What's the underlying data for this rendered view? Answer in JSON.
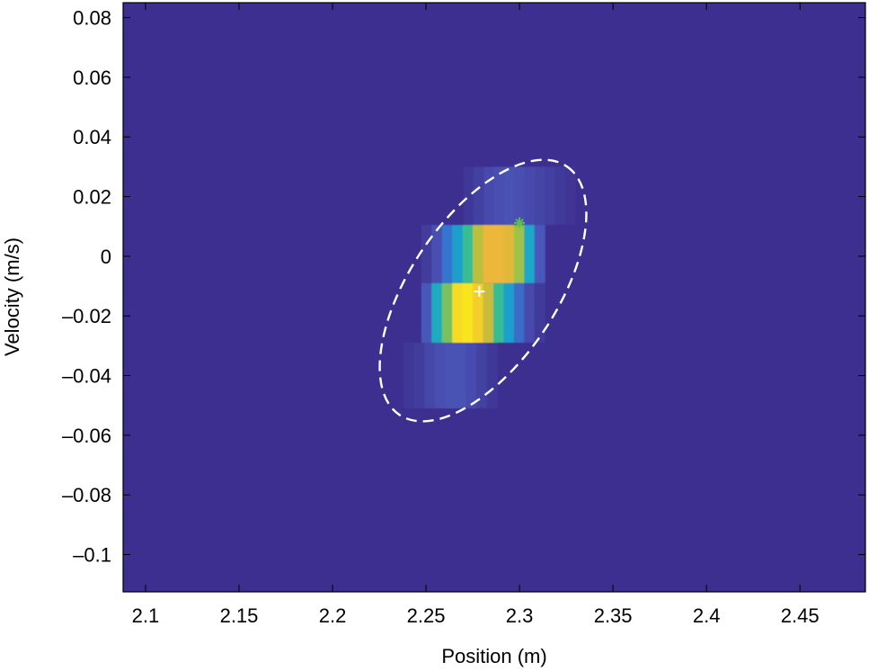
{
  "chart_data": {
    "type": "heatmap",
    "xlabel": "Position (m)",
    "ylabel": "Velocity (m/s)",
    "xlim": [
      2.088,
      2.485
    ],
    "ylim": [
      -0.1125,
      0.085
    ],
    "x_ticks": [
      2.1,
      2.15,
      2.2,
      2.25,
      2.3,
      2.35,
      2.4,
      2.45
    ],
    "x_tick_labels": [
      "2.1",
      "2.15",
      "2.2",
      "2.25",
      "2.3",
      "2.35",
      "2.4",
      "2.45"
    ],
    "y_ticks": [
      0.08,
      0.06,
      0.04,
      0.02,
      0,
      -0.02,
      -0.04,
      -0.06,
      -0.08,
      -0.1
    ],
    "y_tick_labels": [
      "0.08",
      "0.06",
      "0.04",
      "0.02",
      "0",
      "–0.02",
      "–0.04",
      "–0.06",
      "–0.08",
      "–0.1"
    ],
    "background_color": "#3d2f8f",
    "colormap": [
      "#3d2f8f",
      "#4a55b8",
      "#2f7fd6",
      "#1aa8c8",
      "#3dbf8a",
      "#a8c23e",
      "#f0b63a",
      "#f8e51c"
    ],
    "grid": false,
    "cells": [
      {
        "x0": 2.2475,
        "x1": 2.3135,
        "y0": -0.029,
        "y1": -0.009,
        "x": [
          2.2525,
          2.2575,
          2.2625,
          2.2675,
          2.2725,
          2.2775,
          2.2825,
          2.2875,
          2.2925,
          2.2975,
          2.3025,
          2.3075
        ],
        "v": [
          0.15,
          0.45,
          0.65,
          0.97,
          1.0,
          0.93,
          0.78,
          0.55,
          0.4,
          0.22,
          0.1,
          0.04
        ]
      },
      {
        "x0": 2.2475,
        "x1": 2.3135,
        "y0": -0.009,
        "y1": 0.0105,
        "x": [
          2.2525,
          2.2575,
          2.2625,
          2.2675,
          2.2725,
          2.2775,
          2.2825,
          2.2875,
          2.2925,
          2.2975,
          2.3025,
          2.3075
        ],
        "v": [
          0.05,
          0.12,
          0.25,
          0.4,
          0.55,
          0.75,
          0.85,
          0.85,
          0.83,
          0.7,
          0.42,
          0.15
        ]
      },
      {
        "x0": 2.27,
        "x1": 2.33,
        "y0": 0.0105,
        "y1": 0.03,
        "x": [
          2.275,
          2.28,
          2.285,
          2.29,
          2.295,
          2.3,
          2.305,
          2.31,
          2.315,
          2.32,
          2.325
        ],
        "v": [
          0.03,
          0.06,
          0.1,
          0.12,
          0.13,
          0.12,
          0.1,
          0.08,
          0.06,
          0.04,
          0.02
        ]
      },
      {
        "x0": 2.238,
        "x1": 2.288,
        "y0": -0.051,
        "y1": -0.029,
        "x": [
          2.243,
          2.248,
          2.253,
          2.258,
          2.263,
          2.268,
          2.273,
          2.278,
          2.283
        ],
        "v": [
          0.03,
          0.05,
          0.09,
          0.12,
          0.13,
          0.13,
          0.11,
          0.07,
          0.03
        ]
      }
    ],
    "ellipse": {
      "cx": 2.2805,
      "cy": -0.0115,
      "rx": 0.042,
      "ry": 0.0245,
      "angle_deg": 56,
      "color": "#ffffff",
      "dash": "dashed"
    },
    "markers": [
      {
        "symbol": "plus",
        "x": 2.2785,
        "y": -0.0118,
        "color": "#ffffff"
      },
      {
        "symbol": "asterisk",
        "x": 2.3,
        "y": 0.0112,
        "color": "#5cc24a"
      }
    ]
  }
}
